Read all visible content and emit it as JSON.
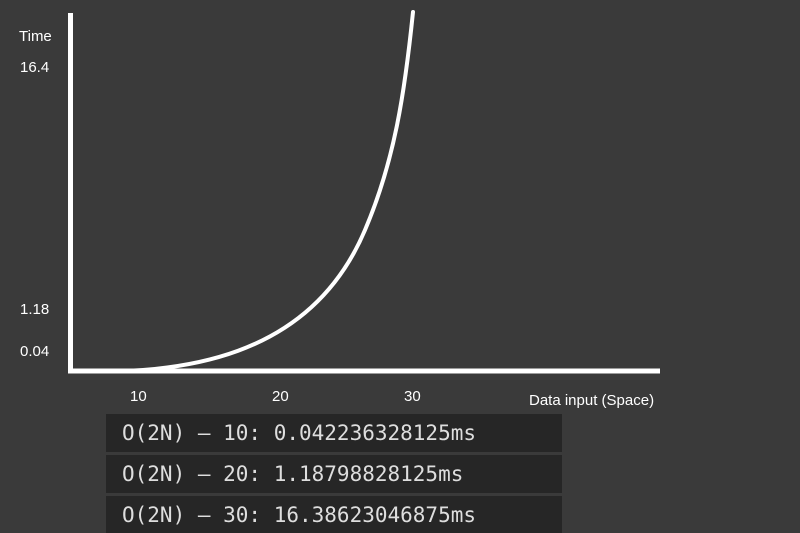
{
  "chart_data": {
    "type": "line",
    "xlabel": "Data input (Space)",
    "ylabel": "Time",
    "x_ticks": [
      "10",
      "20",
      "30"
    ],
    "y_ticks": [
      "0.04",
      "1.18",
      "16.4"
    ],
    "series": [
      {
        "x": [
          5,
          10,
          15,
          20,
          25,
          30,
          30.5
        ],
        "y": [
          0.04,
          0.04,
          0.25,
          1.18,
          4.5,
          16.4,
          18.8
        ]
      }
    ],
    "xlim": [
      5,
      30.5
    ],
    "ylim": [
      0,
      18.8
    ],
    "grid": false,
    "line_color": "#ffffff",
    "background": "#3a3a3a"
  },
  "log": {
    "lines": [
      "O(2N) — 10: 0.042236328125ms",
      "O(2N) — 20: 1.18798828125ms",
      "O(2N) — 30: 16.38623046875ms"
    ]
  }
}
